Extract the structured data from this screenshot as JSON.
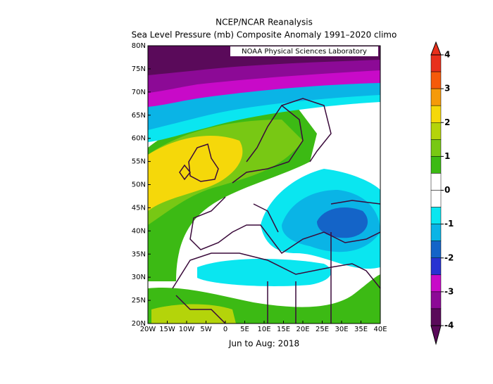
{
  "chart_data": {
    "type": "map",
    "title": "NCEP/NCAR Reanalysis",
    "subtitle": "Sea Level Pressure (mb) Composite Anomaly 1991–2020 climo",
    "credit": "NOAA Physical Sciences Laboratory",
    "footer": "Jun to Aug: 2018",
    "xlim": [
      -20,
      40
    ],
    "xticks": [
      {
        "value": -20,
        "label": "20W"
      },
      {
        "value": -15,
        "label": "15W"
      },
      {
        "value": -10,
        "label": "10W"
      },
      {
        "value": -5,
        "label": "5W"
      },
      0,
      {
        "value": 5,
        "label": "5E"
      },
      {
        "value": 10,
        "label": "10E"
      },
      {
        "value": 15,
        "label": "15E"
      },
      {
        "value": 20,
        "label": "20E"
      },
      {
        "value": 25,
        "label": "25E"
      },
      {
        "value": 30,
        "label": "30E"
      },
      {
        "value": 35,
        "label": "35E"
      },
      {
        "value": 40,
        "label": "40E"
      }
    ],
    "ylim": [
      20,
      80
    ],
    "yticks": [
      {
        "value": 20,
        "label": "20N"
      },
      {
        "value": 25,
        "label": "25N"
      },
      {
        "value": 30,
        "label": "30N"
      },
      {
        "value": 35,
        "label": "35N"
      },
      {
        "value": 40,
        "label": "40N"
      },
      {
        "value": 45,
        "label": "45N"
      },
      {
        "value": 50,
        "label": "50N"
      },
      {
        "value": 55,
        "label": "55N"
      },
      {
        "value": 60,
        "label": "60N"
      },
      {
        "value": 65,
        "label": "65N"
      },
      {
        "value": 70,
        "label": "70N"
      },
      {
        "value": 75,
        "label": "75N"
      },
      {
        "value": 80,
        "label": "80N"
      }
    ],
    "colorbar": {
      "lim": [
        -4,
        4
      ],
      "ticks": [
        4,
        3,
        2,
        1,
        0,
        -1,
        -2,
        -3,
        -4
      ],
      "colors": [
        "#e8301c",
        "#f55a0a",
        "#f59a0a",
        "#f5d80a",
        "#b4d40a",
        "#78c814",
        "#3cba14",
        "#ffffff",
        "#ffffff",
        "#0ae6f0",
        "#0ab4e6",
        "#1464c8",
        "#2832d2",
        "#c80ac8",
        "#8c0a96",
        "#5a0a5a"
      ]
    }
  }
}
